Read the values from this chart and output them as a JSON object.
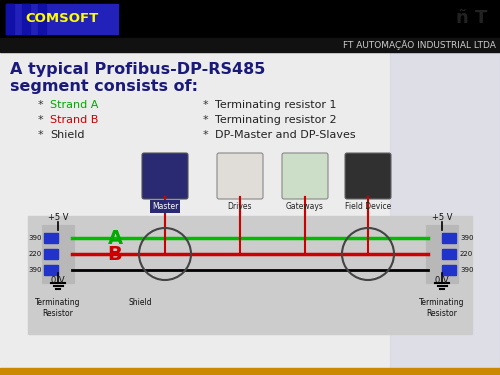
{
  "title_line1": "A typical Profibus-DP-RS485",
  "title_line2": "segment consists of:",
  "header_company": "FT AUTOMAÇÃO INDUSTRIAL LTDA",
  "logo_text": "COMSOFT",
  "bg_color": "#ececec",
  "header_bg": "#000000",
  "dark_band_color": "#1a1a1a",
  "logo_bg": "#2222bb",
  "logo_text_color": "#ffff00",
  "title_color": "#1a1a7a",
  "strand_a_color": "#00aa00",
  "strand_b_color": "#cc0000",
  "shield_color": "#222222",
  "line_green": "#00bb00",
  "line_red": "#cc0000",
  "line_black": "#000000",
  "resistor_color": "#2233cc",
  "bullet_items_left": [
    "Strand A",
    "Strand B",
    "Shield"
  ],
  "bullet_items_right": [
    "Terminating resistor 1",
    "Terminating resistor 2",
    "DP-Master and DP-Slaves"
  ],
  "resistor_values": [
    "390",
    "220",
    "390"
  ],
  "device_labels": [
    "Master",
    "Drives",
    "Gateways",
    "Field Device"
  ],
  "label_A": "A",
  "label_B": "B",
  "diag_bg": "#cccccc",
  "term_block_color": "#b8b8b8",
  "bottom_bar_color": "#cc8800"
}
